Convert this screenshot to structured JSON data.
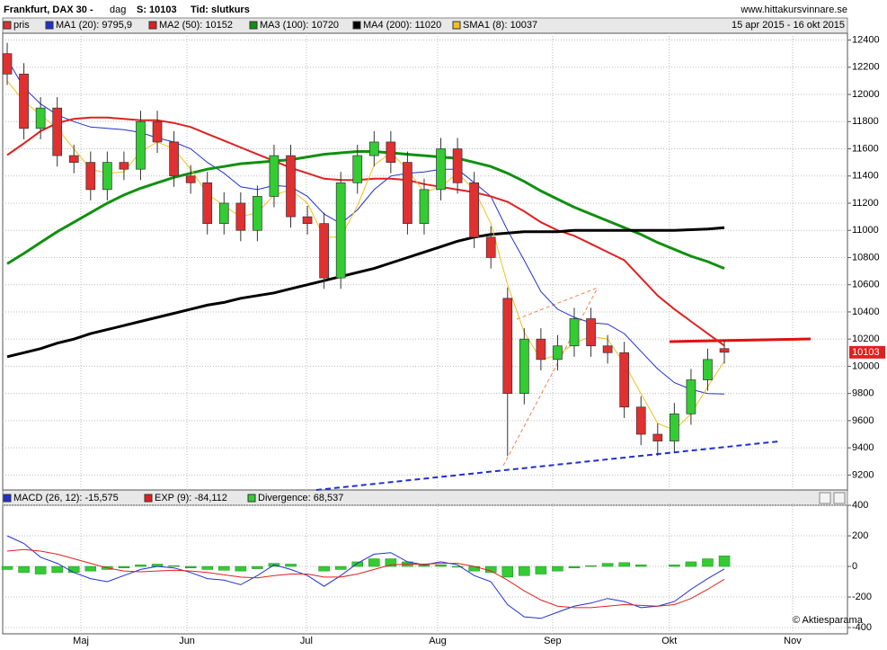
{
  "chart_data": [
    {
      "type": "candlestick",
      "title": "Frankfurt, DAX 30 -",
      "period": "dag",
      "close_label": "S: 10103",
      "basis": "Tid: slutkurs",
      "source": "www.hittakursvinnare.se",
      "date_range": "15 apr 2015 - 16 okt 2015",
      "name": "pris",
      "color": "#e03030",
      "up_color": "#33cc33",
      "categories": [
        null,
        null,
        null,
        null,
        null,
        null,
        null,
        null,
        null,
        null,
        null,
        null,
        null,
        null,
        null,
        null,
        null,
        null,
        null,
        null,
        null,
        null,
        null,
        null,
        null,
        null,
        null,
        null,
        null,
        null,
        null,
        null,
        null,
        null,
        null,
        null,
        null,
        null,
        null,
        null,
        null,
        null,
        null,
        null
      ],
      "open": [
        12300,
        12150,
        11750,
        11900,
        11550,
        11500,
        11300,
        11500,
        11450,
        11800,
        11650,
        11400,
        11350,
        11050,
        11200,
        11000,
        11250,
        11550,
        11100,
        11050,
        10650,
        11350,
        11550,
        11650,
        11500,
        11050,
        11300,
        11600,
        11350,
        10950,
        10500,
        9800,
        10200,
        10050,
        10150,
        10350,
        10150,
        10100,
        9700,
        9500,
        9450,
        9650,
        9900,
        10130
      ],
      "high": [
        12380,
        12230,
        11980,
        11980,
        11630,
        11580,
        11580,
        11580,
        11880,
        11880,
        11730,
        11480,
        11430,
        11280,
        11280,
        11330,
        11630,
        11630,
        11180,
        11130,
        11430,
        11630,
        11730,
        11730,
        11580,
        11380,
        11680,
        11680,
        11430,
        11030,
        10580,
        10280,
        10280,
        10230,
        10430,
        10430,
        10230,
        10180,
        9780,
        9580,
        9730,
        9980,
        10130,
        10190
      ],
      "low": [
        12070,
        11670,
        11670,
        11470,
        11420,
        11220,
        11220,
        11370,
        11370,
        11570,
        11320,
        11270,
        10970,
        10970,
        10920,
        10920,
        11170,
        11020,
        10970,
        10570,
        10570,
        11270,
        11470,
        11420,
        10970,
        10970,
        11220,
        11270,
        10870,
        10720,
        9340,
        9720,
        9970,
        9970,
        10070,
        10070,
        10020,
        9620,
        9420,
        9340,
        9370,
        9570,
        9820,
        10020
      ],
      "close": [
        12150,
        11750,
        11900,
        11550,
        11500,
        11300,
        11500,
        11450,
        11800,
        11650,
        11400,
        11350,
        11050,
        11200,
        11000,
        11250,
        11550,
        11100,
        11050,
        10650,
        11350,
        11550,
        11650,
        11500,
        11050,
        11300,
        11600,
        11350,
        10950,
        10800,
        9800,
        10200,
        10050,
        10150,
        10350,
        10150,
        10100,
        9700,
        9500,
        9450,
        9650,
        9900,
        10050,
        10103
      ],
      "series": [
        {
          "name": "MA1 (20): 9795,9",
          "color": "#2030d0",
          "width": 1,
          "values": [
            12260,
            12050,
            11930,
            11850,
            11800,
            11760,
            11750,
            11740,
            11720,
            11680,
            11650,
            11600,
            11500,
            11420,
            11320,
            11300,
            11330,
            11320,
            11250,
            11120,
            11050,
            11150,
            11300,
            11400,
            11420,
            11430,
            11450,
            11450,
            11350,
            11250,
            11000,
            10780,
            10550,
            10420,
            10360,
            10320,
            10310,
            10240,
            10110,
            9980,
            9880,
            9830,
            9800,
            9796
          ]
        },
        {
          "name": "MA2 (50): 10152",
          "color": "#e02020",
          "width": 2,
          "values": [
            11554,
            11640,
            11730,
            11790,
            11820,
            11830,
            11830,
            11820,
            11810,
            11810,
            11790,
            11760,
            11710,
            11660,
            11610,
            11560,
            11510,
            11460,
            11420,
            11380,
            11370,
            11370,
            11380,
            11380,
            11370,
            11340,
            11320,
            11300,
            11280,
            11250,
            11210,
            11140,
            11060,
            11000,
            10960,
            10900,
            10840,
            10780,
            10650,
            10520,
            10420,
            10330,
            10240,
            10152
          ]
        },
        {
          "name": "MA3 (100): 10720",
          "color": "#109010",
          "width": 3,
          "values": [
            10754,
            10830,
            10910,
            10990,
            11060,
            11130,
            11200,
            11260,
            11310,
            11350,
            11390,
            11420,
            11450,
            11470,
            11490,
            11500,
            11510,
            11520,
            11540,
            11560,
            11570,
            11580,
            11580,
            11570,
            11560,
            11550,
            11540,
            11530,
            11500,
            11470,
            11420,
            11360,
            11290,
            11230,
            11170,
            11120,
            11070,
            11020,
            10970,
            10910,
            10860,
            10810,
            10770,
            10720
          ]
        },
        {
          "name": "MA4 (200): 11020",
          "color": "#000000",
          "width": 3,
          "values": [
            10070,
            10100,
            10130,
            10170,
            10200,
            10240,
            10270,
            10300,
            10330,
            10360,
            10390,
            10420,
            10450,
            10470,
            10500,
            10520,
            10540,
            10570,
            10600,
            10630,
            10660,
            10690,
            10720,
            10760,
            10800,
            10840,
            10880,
            10920,
            10950,
            10970,
            10980,
            10990,
            10990,
            10990,
            11000,
            11000,
            11000,
            11000,
            11000,
            11000,
            11000,
            11005,
            11010,
            11020
          ]
        },
        {
          "name": "SMA1 (8): 10037",
          "color": "#f0c020",
          "width": 1,
          "values": [
            12100,
            11950,
            11850,
            11750,
            11600,
            11450,
            11420,
            11430,
            11580,
            11650,
            11600,
            11450,
            11270,
            11180,
            11100,
            11130,
            11260,
            11300,
            11200,
            10950,
            10950,
            11180,
            11480,
            11570,
            11450,
            11280,
            11320,
            11420,
            11300,
            11050,
            10600,
            10250,
            10050,
            10080,
            10170,
            10220,
            10200,
            10020,
            9800,
            9580,
            9530,
            9650,
            9850,
            10037
          ]
        }
      ],
      "xlim": [
        -0.27,
        50.38
      ],
      "ylim": [
        9090,
        12450
      ],
      "yticks": [
        9200,
        9400,
        9600,
        9800,
        10000,
        10200,
        10400,
        10600,
        10800,
        11000,
        11200,
        11400,
        11600,
        11800,
        12000,
        12200,
        12400
      ],
      "grid": true
    },
    {
      "type": "line",
      "categories": [
        null,
        null,
        null,
        null,
        null,
        null,
        null,
        null,
        null,
        null,
        null,
        null,
        null,
        null,
        null,
        null,
        null,
        null,
        null,
        null,
        null,
        null,
        null,
        null,
        null,
        null,
        null,
        null,
        null,
        null,
        null,
        null,
        null,
        null,
        null,
        null,
        null,
        null,
        null,
        null,
        null,
        null,
        null,
        null
      ],
      "series": [
        {
          "name": "MACD (26, 12): -15,575",
          "color": "#2030d0",
          "values": [
            200,
            150,
            60,
            20,
            -40,
            -80,
            -100,
            -60,
            -20,
            0,
            -10,
            -40,
            -80,
            -90,
            -120,
            -60,
            10,
            -20,
            -60,
            -130,
            -60,
            20,
            80,
            90,
            30,
            10,
            30,
            10,
            -60,
            -100,
            -250,
            -330,
            -340,
            -300,
            -260,
            -240,
            -210,
            -230,
            -270,
            -260,
            -230,
            -150,
            -80,
            -16
          ]
        },
        {
          "name": "EXP (9): -84,112",
          "color": "#e02020",
          "values": [
            100,
            110,
            100,
            80,
            50,
            20,
            -10,
            -30,
            -35,
            -30,
            -25,
            -30,
            -40,
            -55,
            -70,
            -75,
            -60,
            -50,
            -50,
            -70,
            -70,
            -50,
            -20,
            10,
            15,
            15,
            20,
            20,
            0,
            -30,
            -90,
            -160,
            -220,
            -260,
            -270,
            -270,
            -260,
            -250,
            -255,
            -260,
            -250,
            -210,
            -150,
            -84
          ]
        },
        {
          "name": "Divergence: 68,537",
          "color": "#33cc33",
          "kind": "bar",
          "values": [
            -20,
            -40,
            -50,
            -40,
            -40,
            -30,
            -20,
            -10,
            10,
            15,
            5,
            -10,
            -20,
            -25,
            -30,
            -15,
            20,
            15,
            0,
            -30,
            -20,
            30,
            50,
            50,
            30,
            10,
            10,
            -5,
            -30,
            -40,
            -70,
            -60,
            -50,
            -30,
            -10,
            5,
            20,
            25,
            10,
            0,
            10,
            30,
            50,
            69
          ]
        }
      ],
      "xlim": [
        -0.27,
        50.38
      ],
      "ylim": [
        -441,
        412
      ],
      "yticks": [
        -400,
        -200,
        0,
        200,
        400
      ],
      "xticks": [
        {
          "value": 4.42,
          "label": "Maj"
        },
        {
          "value": 10.78,
          "label": "Jun"
        },
        {
          "value": 17.94,
          "label": "Jul"
        },
        {
          "value": 25.81,
          "label": "Aug"
        },
        {
          "value": 32.7,
          "label": "Sep"
        },
        {
          "value": 39.7,
          "label": "Okt"
        },
        {
          "value": 47.09,
          "label": "Nov"
        }
      ],
      "grid": true,
      "credit": "© Aktiesparama"
    }
  ]
}
